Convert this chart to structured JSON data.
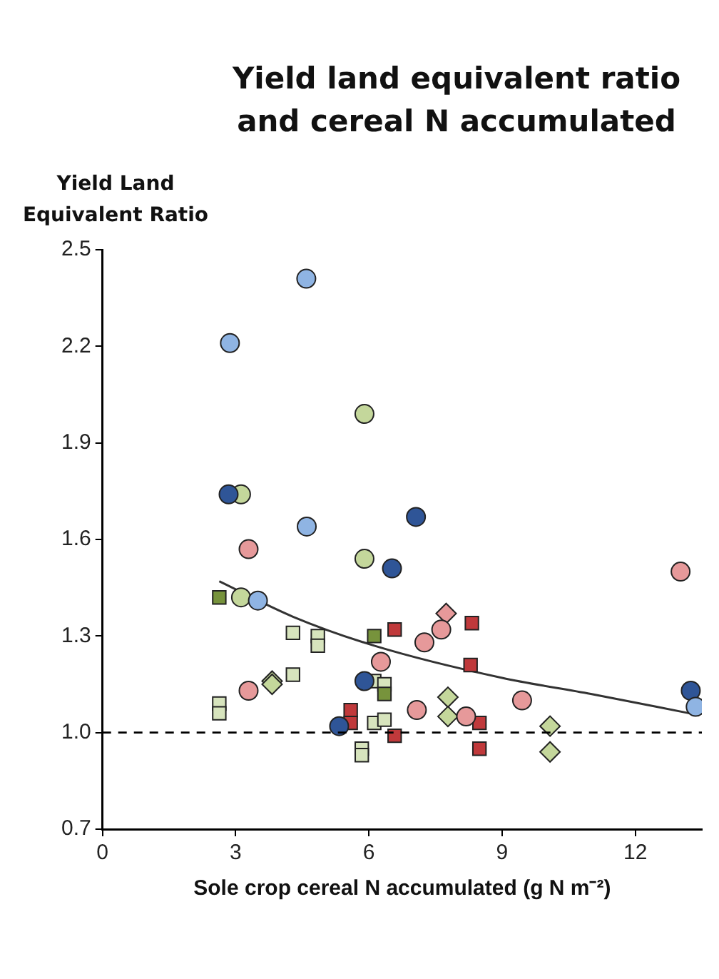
{
  "chart_data": {
    "type": "scatter",
    "title": "Yield land equivalent ratio and cereal N accumulated",
    "xlabel": "Sole crop cereal N accumulated (g N m⁻²)",
    "ylabel": "Yield Land Equivalent Ratio",
    "xlim": [
      0,
      13.5
    ],
    "xticks": [
      0,
      3,
      6,
      9,
      12
    ],
    "ylim": [
      0.7,
      2.5
    ],
    "yticks": [
      0.7,
      {
        "value": 1,
        "label": "1.0"
      },
      1.3,
      1.6,
      1.9,
      2.2,
      2.5
    ],
    "grid": false,
    "legend": false,
    "ref_lines": [
      {
        "axis": "y",
        "value": 1.0,
        "color": "#000000",
        "line_style": "dashed"
      }
    ],
    "series": [
      {
        "color": "#8fb4e3",
        "marker": "circle",
        "x": [
          4.59,
          2.87,
          4.6,
          3.5,
          13.36
        ],
        "values": [
          2.41,
          2.21,
          1.64,
          1.41,
          1.08
        ]
      },
      {
        "color": "#2f5597",
        "marker": "circle",
        "x": [
          2.84,
          7.06,
          6.52,
          5.9,
          13.25,
          5.33
        ],
        "values": [
          1.74,
          1.67,
          1.51,
          1.16,
          1.13,
          1.02
        ]
      },
      {
        "color": "#c4d79b",
        "marker": "circle",
        "x": [
          5.9,
          3.12,
          5.9,
          3.12
        ],
        "values": [
          1.99,
          1.74,
          1.54,
          1.42
        ]
      },
      {
        "color": "#e6999a",
        "marker": "circle",
        "x": [
          3.29,
          13.02,
          7.63,
          7.25,
          6.27,
          3.29,
          9.45,
          7.08,
          8.19
        ],
        "values": [
          1.57,
          1.5,
          1.32,
          1.28,
          1.22,
          1.13,
          1.1,
          1.07,
          1.05
        ]
      },
      {
        "color": "#77933c",
        "marker": "square",
        "x": [
          2.63,
          6.12,
          6.35
        ],
        "values": [
          1.42,
          1.3,
          1.12
        ]
      },
      {
        "color": "#d7e4bd",
        "marker": "square",
        "x": [
          4.29,
          4.85,
          4.85,
          4.29,
          6.12,
          6.35,
          2.63,
          2.63,
          6.12,
          6.35,
          5.84,
          5.84
        ],
        "values": [
          1.31,
          1.3,
          1.27,
          1.18,
          1.16,
          1.15,
          1.09,
          1.06,
          1.03,
          1.04,
          0.95,
          0.93
        ]
      },
      {
        "color": "#c0393b",
        "marker": "square",
        "x": [
          6.58,
          8.32,
          8.29,
          8.49,
          8.49,
          5.59,
          5.59,
          6.58
        ],
        "values": [
          1.32,
          1.34,
          1.21,
          1.03,
          0.95,
          1.07,
          1.03,
          0.99
        ]
      },
      {
        "color": "#c4d79b",
        "marker": "diamond",
        "x": [
          3.82,
          3.82,
          7.78,
          7.78,
          10.08,
          10.08
        ],
        "values": [
          1.16,
          1.15,
          1.11,
          1.05,
          1.02,
          0.94
        ]
      },
      {
        "color": "#e6999a",
        "marker": "diamond",
        "x": [
          7.74
        ],
        "values": [
          1.37
        ]
      },
      {
        "type": "line",
        "color": "#333333",
        "marker": "none",
        "x": [
          2.63,
          4.29,
          6.12,
          9,
          11,
          13.22
        ],
        "values": [
          1.47,
          1.36,
          1.27,
          1.17,
          1.12,
          1.06
        ]
      }
    ]
  }
}
